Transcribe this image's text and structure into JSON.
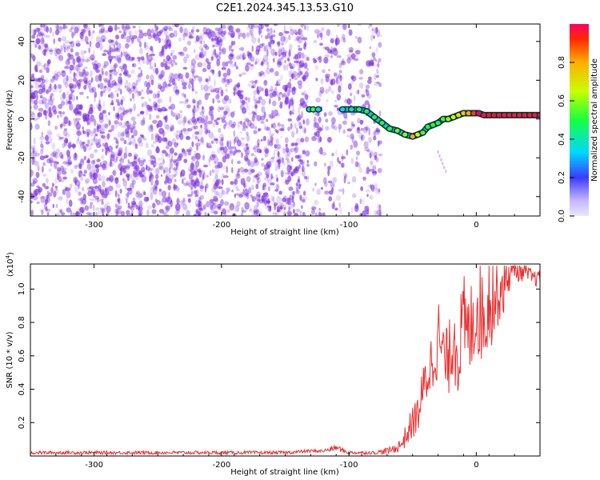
{
  "page_title": "C2E1.2024.345.13.53.G10",
  "colors": {
    "spectrogram_dots": "#7a2ee0",
    "snr_line": "#e83030",
    "axes": "#000000"
  },
  "chart_data": [
    {
      "type": "heatmap",
      "title": "C2E1.2024.345.13.53.G10",
      "xlabel": "Height of straight line (km)",
      "ylabel": "Frequency (Hz)",
      "xlim": [
        -350,
        50
      ],
      "ylim": [
        -50,
        49
      ],
      "xticks": [
        -300,
        -200,
        -100,
        0
      ],
      "xtick_labels": [
        "-300",
        "-200",
        "-100",
        "0"
      ],
      "yticks": [
        -40,
        -20,
        0,
        20,
        40
      ],
      "ytick_labels": [
        "-40",
        "-20",
        "0",
        "20",
        "40"
      ],
      "colorbar": {
        "label": "Normalized spectral amplitude",
        "range": [
          0,
          1
        ],
        "ticks": [
          0.0,
          0.2,
          0.4,
          0.6,
          0.8
        ],
        "tick_labels": [
          "0.0",
          "0.2",
          "0.4",
          "0.6",
          "0.8"
        ]
      },
      "trace": {
        "x": [
          -131,
          -128,
          -124,
          -105,
          -98,
          -92,
          -86,
          -80,
          -74,
          -68,
          -62,
          -56,
          -50,
          -46,
          -42,
          -38,
          -34,
          -30,
          -26,
          -22,
          -18,
          -14,
          -10,
          -6,
          -2,
          2,
          6,
          10,
          14,
          18,
          22,
          26,
          30,
          34,
          38,
          42,
          46,
          50
        ],
        "y": [
          5,
          5,
          5,
          5,
          5,
          5,
          4,
          1,
          -2,
          -5,
          -6,
          -8,
          -9,
          -8,
          -7,
          -4,
          -3,
          -2,
          0,
          0,
          1,
          2,
          3,
          3,
          3,
          3,
          2,
          2,
          2,
          2,
          2,
          2,
          2,
          2,
          2,
          2,
          2,
          2
        ],
        "amplitude": [
          0.35,
          0.55,
          0.35,
          0.35,
          0.4,
          0.45,
          0.45,
          0.5,
          0.5,
          0.5,
          0.55,
          0.6,
          0.8,
          0.65,
          0.55,
          0.5,
          0.5,
          0.5,
          0.55,
          0.6,
          0.65,
          0.7,
          0.75,
          0.8,
          0.9,
          1.0,
          0.95,
          0.95,
          0.95,
          0.95,
          0.95,
          0.95,
          0.95,
          0.95,
          0.95,
          0.95,
          0.95,
          0.95
        ]
      }
    },
    {
      "type": "line",
      "xlabel": "Height of straight line (km)",
      "ylabel": "SNR (10 * v/v)",
      "y_multiplier_label": "(x10",
      "y_multiplier_exp": "4",
      "y_multiplier_close": ")",
      "xlim": [
        -350,
        50
      ],
      "ylim": [
        0,
        1.15
      ],
      "xticks": [
        -300,
        -200,
        -100,
        0
      ],
      "xtick_labels": [
        "-300",
        "-200",
        "-100",
        "0"
      ],
      "yticks": [
        0.2,
        0.4,
        0.6,
        0.8,
        1.0
      ],
      "ytick_labels": [
        "0.2",
        "0.4",
        "0.6",
        "0.8",
        "1.0"
      ],
      "series": [
        {
          "name": "SNR",
          "x": [
            -350,
            -300,
            -250,
            -200,
            -150,
            -130,
            -120,
            -110,
            -100,
            -80,
            -70,
            -62,
            -58,
            -54,
            -50,
            -46,
            -42,
            -38,
            -34,
            -30,
            -26,
            -22,
            -18,
            -14,
            -10,
            -6,
            -2,
            2,
            6,
            10,
            14,
            18,
            22,
            26,
            30,
            34,
            38,
            42,
            46,
            50
          ],
          "y": [
            0.02,
            0.02,
            0.02,
            0.02,
            0.02,
            0.03,
            0.03,
            0.05,
            0.02,
            0.02,
            0.03,
            0.05,
            0.08,
            0.14,
            0.2,
            0.25,
            0.38,
            0.5,
            0.58,
            0.72,
            0.6,
            0.55,
            0.75,
            0.62,
            0.8,
            0.7,
            0.85,
            0.9,
            0.82,
            0.95,
            0.95,
            1.0,
            1.02,
            1.1,
            1.12,
            1.1,
            1.1,
            1.08,
            1.06,
            1.07
          ],
          "noise_amplitude": [
            0.01,
            0.01,
            0.01,
            0.01,
            0.01,
            0.01,
            0.01,
            0.02,
            0.01,
            0.01,
            0.02,
            0.03,
            0.05,
            0.08,
            0.1,
            0.12,
            0.15,
            0.18,
            0.2,
            0.25,
            0.22,
            0.2,
            0.3,
            0.28,
            0.3,
            0.28,
            0.3,
            0.32,
            0.3,
            0.3,
            0.28,
            0.2,
            0.18,
            0.12,
            0.06,
            0.06,
            0.05,
            0.05,
            0.05,
            0.04
          ]
        }
      ]
    }
  ]
}
